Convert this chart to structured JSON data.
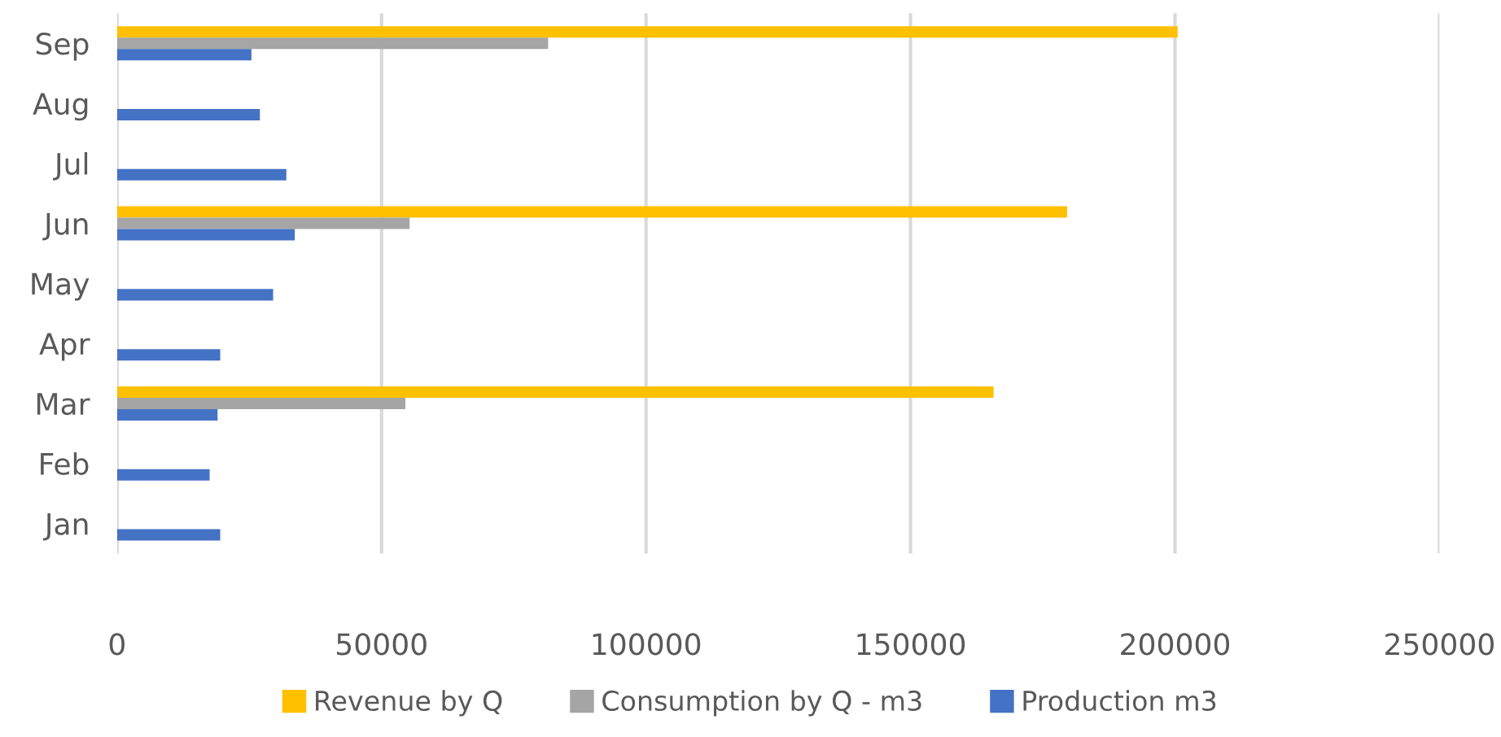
{
  "chart_data": {
    "type": "bar",
    "orientation": "horizontal",
    "categories": [
      "Sep",
      "Aug",
      "Jul",
      "Jun",
      "May",
      "Apr",
      "Mar",
      "Feb",
      "Jan"
    ],
    "series": [
      {
        "name": "Revenue by Q",
        "color": "#ffc000",
        "values": [
          200500,
          null,
          null,
          179600,
          null,
          null,
          165700,
          null,
          null
        ]
      },
      {
        "name": "Consumption by Q - m3",
        "color": "#a5a5a5",
        "values": [
          81500,
          null,
          null,
          55300,
          null,
          null,
          54500,
          null,
          null
        ]
      },
      {
        "name": "Production m3",
        "color": "#4472c4",
        "values": [
          25400,
          27000,
          32000,
          33600,
          29500,
          19500,
          19000,
          17500,
          19500
        ]
      }
    ],
    "xlim": [
      0,
      250000
    ],
    "xticks": [
      0,
      50000,
      100000,
      150000,
      200000,
      250000
    ],
    "grid": "x",
    "legend": "bottom"
  }
}
